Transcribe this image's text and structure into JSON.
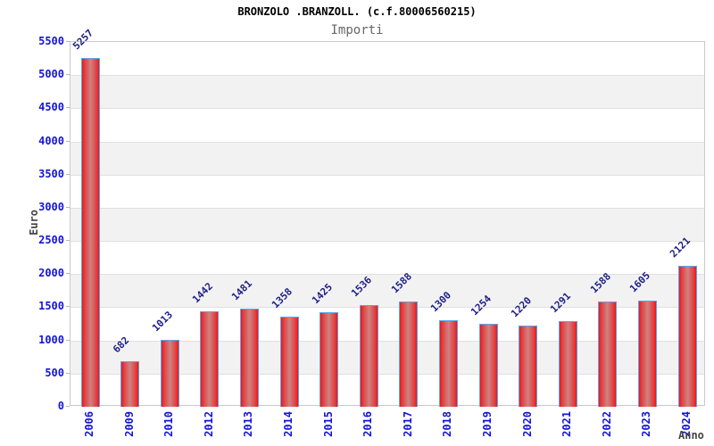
{
  "title": "BRONZOLO .BRANZOLL. (c.f.80006560215)",
  "subtitle": "Importi",
  "chart_data": {
    "type": "bar",
    "categories": [
      "2006",
      "2009",
      "2010",
      "2012",
      "2013",
      "2014",
      "2015",
      "2016",
      "2017",
      "2018",
      "2019",
      "2020",
      "2021",
      "2022",
      "2023",
      "2024"
    ],
    "values": [
      5257,
      682,
      1013,
      1442,
      1481,
      1358,
      1425,
      1536,
      1588,
      1300,
      1254,
      1220,
      1291,
      1588,
      1605,
      2121
    ],
    "title": "Importi",
    "xlabel": "Anno",
    "ylabel": "Euro",
    "ylim": [
      0,
      5500
    ],
    "ytick_step": 500,
    "grid": "horizontal-bands-500",
    "legend": "none",
    "bar_value_labels": "rotated-45-above-bars",
    "xtick_label_rotation": "vertical"
  },
  "colors": {
    "background": "#ffffff",
    "title_text": "#000000",
    "subtitle_text": "#666666",
    "band_gray": "#f2f2f2",
    "band_line": "#e0e0e0",
    "plot_border": "#c9c9c9",
    "bar_edge_red": "#ee1414",
    "bar_center": "#cf8282",
    "bar_border_blue": "#5aa5f0",
    "tick_label_blue": "#1414d8",
    "value_label_navy": "#1d1d87",
    "axis_title_gray": "#444444"
  }
}
